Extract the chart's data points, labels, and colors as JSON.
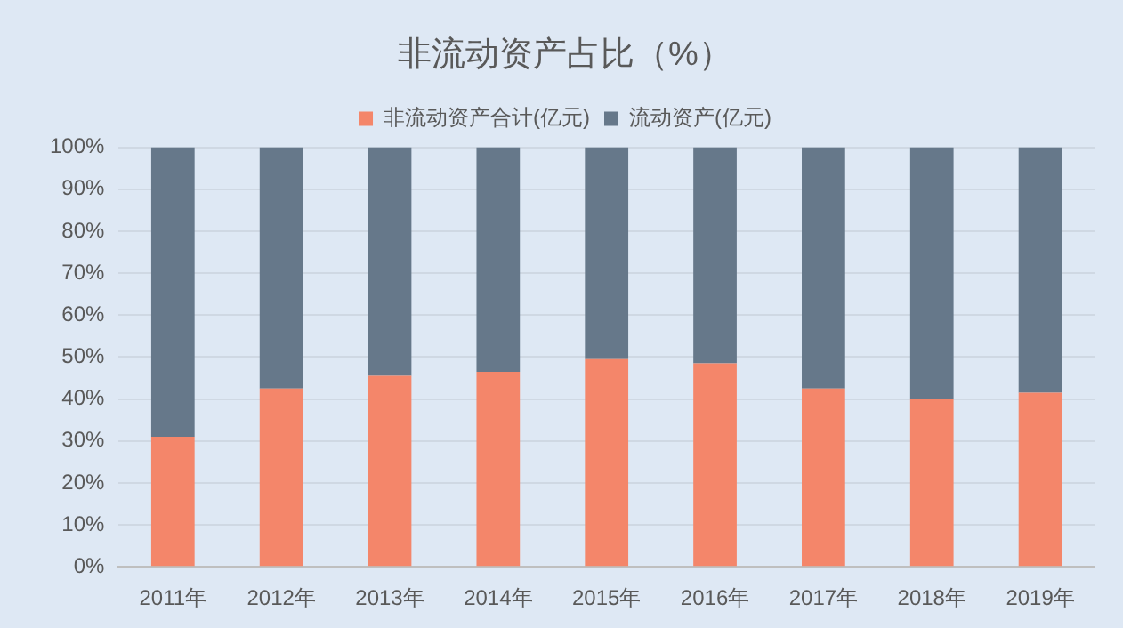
{
  "chart_data": {
    "type": "bar",
    "title": "非流动资产占比（%）",
    "stacked": true,
    "categories": [
      "2011年",
      "2012年",
      "2013年",
      "2014年",
      "2015年",
      "2016年",
      "2017年",
      "2018年",
      "2019年"
    ],
    "series": [
      {
        "name": "非流动资产合计(亿元)",
        "color": "#f4866a",
        "values": [
          31,
          42.5,
          45.5,
          46.5,
          49.5,
          48.5,
          42.5,
          40,
          41.5
        ]
      },
      {
        "name": "流动资产(亿元)",
        "color": "#66788a",
        "values": [
          69,
          57.5,
          54.5,
          53.5,
          50.5,
          51.5,
          57.5,
          60,
          58.5
        ]
      }
    ],
    "ylim": [
      0,
      100
    ],
    "yticks": [
      {
        "value": 0,
        "label": "0%"
      },
      {
        "value": 10,
        "label": "10%"
      },
      {
        "value": 20,
        "label": "20%"
      },
      {
        "value": 30,
        "label": "30%"
      },
      {
        "value": 40,
        "label": "40%"
      },
      {
        "value": 50,
        "label": "50%"
      },
      {
        "value": 60,
        "label": "60%"
      },
      {
        "value": 70,
        "label": "70%"
      },
      {
        "value": 80,
        "label": "80%"
      },
      {
        "value": 90,
        "label": "90%"
      },
      {
        "value": 100,
        "label": "100%"
      }
    ],
    "grid": "y",
    "legend": "top"
  }
}
